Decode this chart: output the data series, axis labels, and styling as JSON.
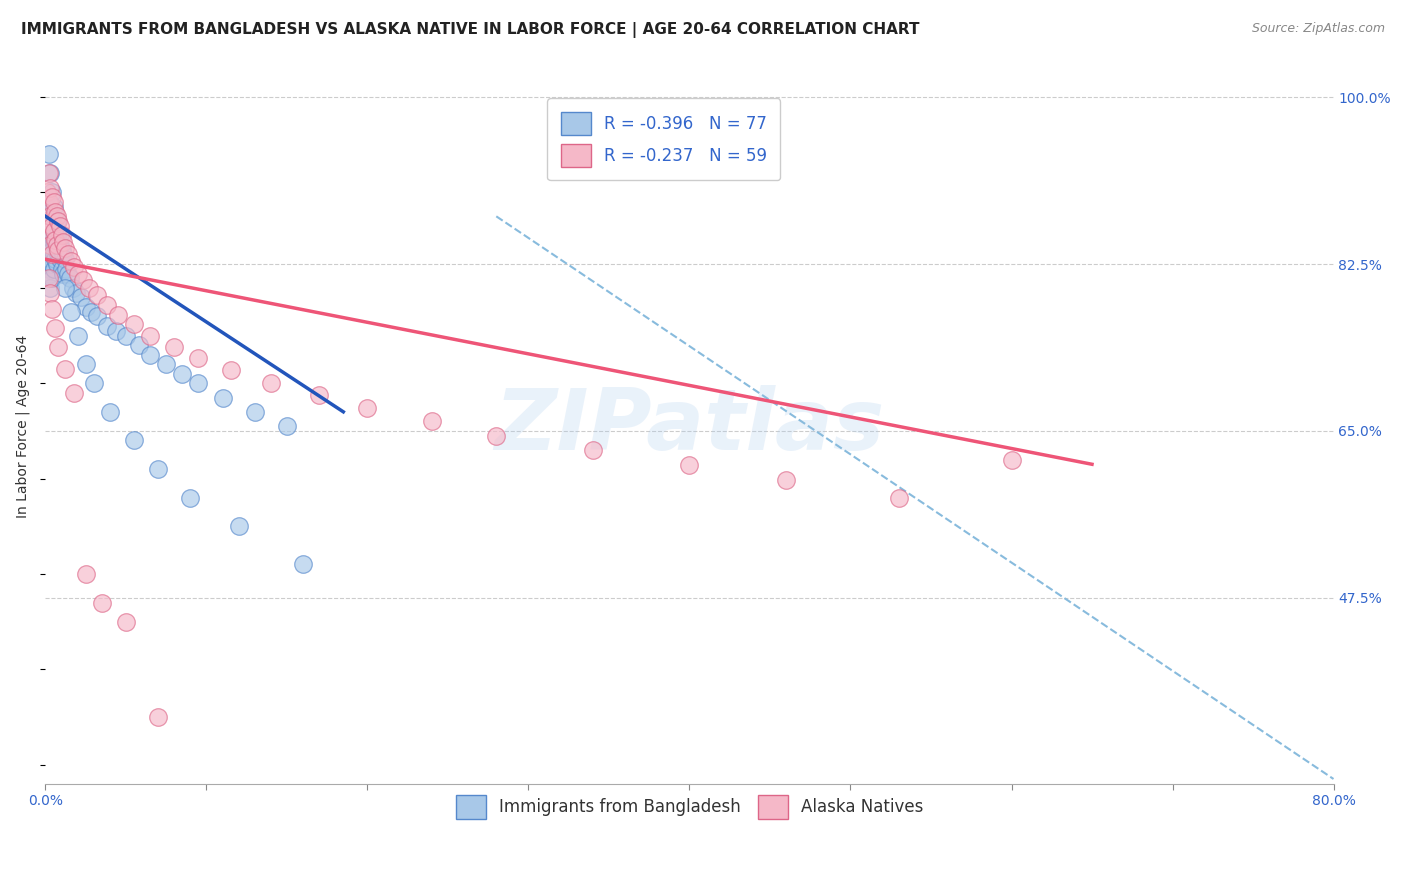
{
  "title": "IMMIGRANTS FROM BANGLADESH VS ALASKA NATIVE IN LABOR FORCE | AGE 20-64 CORRELATION CHART",
  "source": "Source: ZipAtlas.com",
  "ylabel": "In Labor Force | Age 20-64",
  "xlim": [
    0.0,
    0.8
  ],
  "ylim": [
    0.28,
    1.03
  ],
  "right_yticks": [
    0.475,
    0.65,
    0.825,
    1.0
  ],
  "right_yticklabels": [
    "47.5%",
    "65.0%",
    "82.5%",
    "100.0%"
  ],
  "blue_scatter_x": [
    0.001,
    0.001,
    0.001,
    0.001,
    0.002,
    0.002,
    0.002,
    0.002,
    0.002,
    0.002,
    0.003,
    0.003,
    0.003,
    0.003,
    0.003,
    0.003,
    0.004,
    0.004,
    0.004,
    0.004,
    0.004,
    0.005,
    0.005,
    0.005,
    0.005,
    0.006,
    0.006,
    0.006,
    0.007,
    0.007,
    0.007,
    0.008,
    0.008,
    0.009,
    0.009,
    0.01,
    0.01,
    0.011,
    0.011,
    0.012,
    0.013,
    0.014,
    0.015,
    0.017,
    0.019,
    0.022,
    0.025,
    0.028,
    0.032,
    0.038,
    0.044,
    0.05,
    0.058,
    0.065,
    0.075,
    0.085,
    0.095,
    0.11,
    0.13,
    0.15,
    0.002,
    0.003,
    0.004,
    0.005,
    0.007,
    0.009,
    0.012,
    0.016,
    0.02,
    0.025,
    0.03,
    0.04,
    0.055,
    0.07,
    0.09,
    0.12,
    0.16
  ],
  "blue_scatter_y": [
    0.87,
    0.855,
    0.845,
    0.835,
    0.87,
    0.86,
    0.85,
    0.84,
    0.83,
    0.82,
    0.88,
    0.86,
    0.845,
    0.83,
    0.815,
    0.8,
    0.87,
    0.855,
    0.84,
    0.825,
    0.81,
    0.865,
    0.85,
    0.835,
    0.82,
    0.86,
    0.845,
    0.83,
    0.855,
    0.84,
    0.825,
    0.85,
    0.835,
    0.845,
    0.83,
    0.84,
    0.82,
    0.835,
    0.815,
    0.83,
    0.82,
    0.815,
    0.81,
    0.8,
    0.795,
    0.79,
    0.78,
    0.775,
    0.77,
    0.76,
    0.755,
    0.75,
    0.74,
    0.73,
    0.72,
    0.71,
    0.7,
    0.685,
    0.67,
    0.655,
    0.94,
    0.92,
    0.9,
    0.885,
    0.87,
    0.855,
    0.8,
    0.775,
    0.75,
    0.72,
    0.7,
    0.67,
    0.64,
    0.61,
    0.58,
    0.55,
    0.51
  ],
  "pink_scatter_x": [
    0.001,
    0.001,
    0.002,
    0.002,
    0.002,
    0.003,
    0.003,
    0.003,
    0.004,
    0.004,
    0.004,
    0.005,
    0.005,
    0.006,
    0.006,
    0.007,
    0.007,
    0.008,
    0.008,
    0.009,
    0.01,
    0.011,
    0.012,
    0.014,
    0.016,
    0.018,
    0.02,
    0.023,
    0.027,
    0.032,
    0.038,
    0.045,
    0.055,
    0.065,
    0.08,
    0.095,
    0.115,
    0.14,
    0.17,
    0.2,
    0.24,
    0.28,
    0.34,
    0.4,
    0.46,
    0.53,
    0.6,
    0.002,
    0.003,
    0.004,
    0.006,
    0.008,
    0.012,
    0.018,
    0.025,
    0.035,
    0.05,
    0.07
  ],
  "pink_scatter_y": [
    0.9,
    0.87,
    0.92,
    0.89,
    0.86,
    0.905,
    0.875,
    0.845,
    0.895,
    0.865,
    0.835,
    0.89,
    0.86,
    0.88,
    0.85,
    0.875,
    0.845,
    0.87,
    0.84,
    0.865,
    0.855,
    0.848,
    0.842,
    0.835,
    0.828,
    0.822,
    0.815,
    0.808,
    0.8,
    0.792,
    0.782,
    0.772,
    0.762,
    0.75,
    0.738,
    0.726,
    0.714,
    0.7,
    0.688,
    0.674,
    0.66,
    0.645,
    0.63,
    0.614,
    0.598,
    0.58,
    0.62,
    0.81,
    0.795,
    0.778,
    0.758,
    0.738,
    0.715,
    0.69,
    0.5,
    0.47,
    0.45,
    0.35
  ],
  "blue_line": {
    "x0": 0.0,
    "y0": 0.875,
    "x1": 0.185,
    "y1": 0.67
  },
  "pink_line": {
    "x0": 0.0,
    "y0": 0.83,
    "x1": 0.65,
    "y1": 0.615
  },
  "dashed_line": {
    "x0": 0.28,
    "y0": 0.875,
    "x1": 0.8,
    "y1": 0.285
  },
  "blue_color": "#a8c8e8",
  "blue_edge_color": "#5588cc",
  "pink_color": "#f5b8c8",
  "pink_edge_color": "#dd6688",
  "blue_line_color": "#2255bb",
  "pink_line_color": "#ee5577",
  "dashed_line_color": "#88bbdd",
  "watermark": "ZIPatlas",
  "background_color": "#ffffff",
  "title_fontsize": 11,
  "axis_label_fontsize": 10,
  "tick_fontsize": 10
}
